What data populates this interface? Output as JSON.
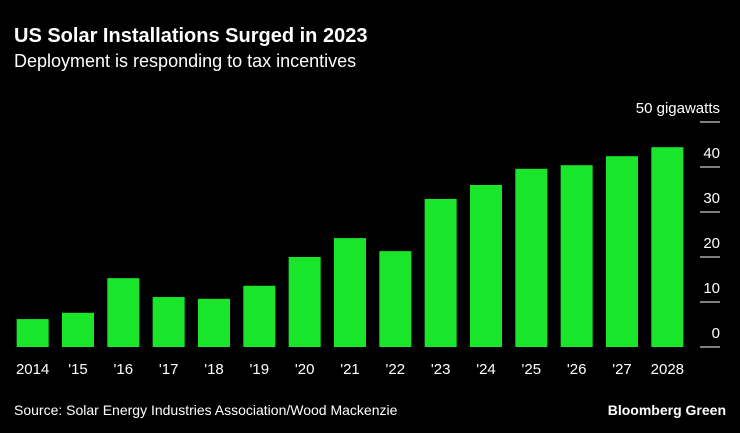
{
  "chart_data": {
    "type": "bar",
    "title": "US Solar Installations Surged in 2023",
    "subtitle": "Deployment is responding to tax incentives",
    "categories": [
      "2014",
      "'15",
      "'16",
      "'17",
      "'18",
      "'19",
      "'20",
      "'21",
      "'22",
      "'23",
      "'24",
      "'25",
      "'26",
      "'27",
      "2028"
    ],
    "values": [
      6.2,
      7.6,
      15.3,
      11.1,
      10.7,
      13.6,
      20.0,
      24.2,
      21.3,
      32.9,
      36.0,
      39.6,
      40.4,
      42.4,
      44.4
    ],
    "color": "#19e62a",
    "ylim": [
      0,
      50
    ],
    "yticks": [
      0,
      10,
      20,
      30,
      40,
      {
        "value": 50,
        "label": "50 gigawatts"
      }
    ],
    "source": "Source: Solar Energy Industries Association/Wood Mackenzie",
    "credit": "Bloomberg Green"
  }
}
